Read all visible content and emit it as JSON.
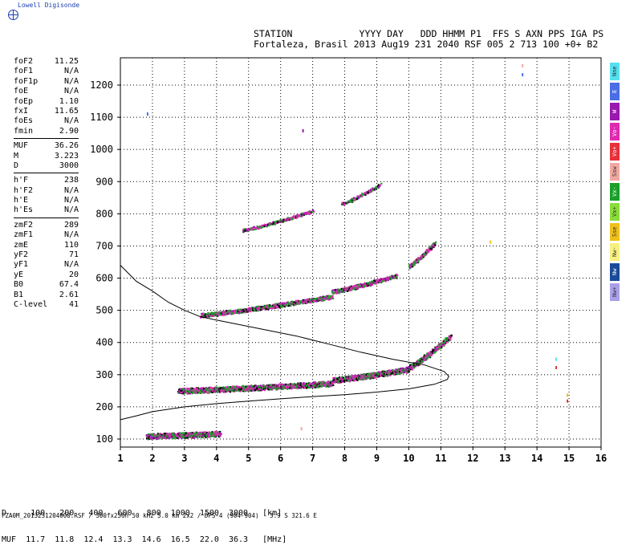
{
  "brand": "Lowell Digisonde",
  "header": {
    "line1": "STATION            YYYY DAY   DDD HHMM P1  FFS S AXN PPS IGA PS",
    "line2": "Fortaleza, Brasil 2013 Aug19 231 2040 RSF 005 2 713 100 +0+ B2"
  },
  "params": {
    "group1": [
      {
        "name": "foF2",
        "value": "11.25"
      },
      {
        "name": "foF1",
        "value": "N/A"
      },
      {
        "name": "foF1p",
        "value": "N/A"
      },
      {
        "name": "foE",
        "value": "N/A"
      },
      {
        "name": "foEp",
        "value": "1.10"
      },
      {
        "name": "fxI",
        "value": "11.65"
      },
      {
        "name": "foEs",
        "value": "N/A"
      },
      {
        "name": "fmin",
        "value": "2.90"
      }
    ],
    "group2": [
      {
        "name": "MUF",
        "value": "36.26"
      },
      {
        "name": "M",
        "value": "3.223"
      },
      {
        "name": "D",
        "value": "3000"
      }
    ],
    "group3": [
      {
        "name": "h'F",
        "value": "238"
      },
      {
        "name": "h'F2",
        "value": "N/A"
      },
      {
        "name": "h'E",
        "value": "N/A"
      },
      {
        "name": "h'Es",
        "value": "N/A"
      }
    ],
    "group4": [
      {
        "name": "zmF2",
        "value": "289"
      },
      {
        "name": "zmF1",
        "value": "N/A"
      },
      {
        "name": "zmE",
        "value": "110"
      },
      {
        "name": "yF2",
        "value": "71"
      },
      {
        "name": "yF1",
        "value": "N/A"
      },
      {
        "name": "yE",
        "value": "20"
      },
      {
        "name": "B0",
        "value": "67.4"
      },
      {
        "name": "B1",
        "value": "2.61"
      },
      {
        "name": "C-level",
        "value": "41"
      }
    ]
  },
  "legend": [
    {
      "label": "Nne",
      "color": "#55e0f0"
    },
    {
      "label": "E",
      "color": "#4a6ee6"
    },
    {
      "label": "W",
      "color": "#9a18b0"
    },
    {
      "label": "Vo-",
      "color": "#e02ab0"
    },
    {
      "label": "Vo+",
      "color": "#e8303a"
    },
    {
      "label": "Ssw",
      "color": "#f0a8a0"
    },
    {
      "label": "Vx-",
      "color": "#1aa02a"
    },
    {
      "label": "Vx+",
      "color": "#8adc3a"
    },
    {
      "label": "Sse",
      "color": "#f0c018"
    },
    {
      "label": "Nw-",
      "color": "#f8f080"
    },
    {
      "label": "Nw",
      "color": "#1a4a9a"
    },
    {
      "label": "Nw+",
      "color": "#a8a0e8"
    }
  ],
  "bottom": {
    "line1": "D     100   200   400   600   800  1000  1500  3000   [km]",
    "line2": "MUF  11.7  11.8  12.4  13.3  14.6  16.5  22.0  36.3   [MHz]"
  },
  "footer": "FZA0M_2013231204000.RSF / 300fx256h 50 kHz 5.0 km 2x2 / DPS-4 (904-904)   3.9 S 321.6 E",
  "chart_data": {
    "type": "scatter",
    "title": "",
    "xlabel": "",
    "ylabel": "",
    "xlim": [
      1,
      16
    ],
    "ylim": [
      80,
      1300
    ],
    "x_ticks": [
      1,
      2,
      3,
      4,
      5,
      6,
      7,
      8,
      9,
      10,
      11,
      12,
      13,
      14,
      15,
      16
    ],
    "y_ticks": [
      100,
      200,
      300,
      400,
      500,
      600,
      700,
      800,
      900,
      1000,
      1100,
      1200
    ],
    "grid": true,
    "profile_curve": {
      "x": [
        1.0,
        1.5,
        2.0,
        3.0,
        4.0,
        5.0,
        6.0,
        7.0,
        8.0,
        9.0,
        10.0,
        10.8,
        11.2,
        11.25,
        11.1,
        10.5,
        9.5,
        8.5,
        7.5,
        6.5,
        5.5,
        4.5,
        4.0,
        3.5,
        3.0,
        2.5,
        2.0,
        1.5,
        1.0
      ],
      "y": [
        160,
        172,
        185,
        200,
        210,
        218,
        225,
        232,
        238,
        246,
        256,
        270,
        285,
        295,
        310,
        330,
        348,
        370,
        395,
        420,
        440,
        460,
        470,
        480,
        500,
        525,
        560,
        590,
        640
      ]
    },
    "traces": [
      {
        "name": "E echoes",
        "x_from": 1.8,
        "x_to": 4.1,
        "h_from": 104,
        "h_to": 112,
        "width": 4
      },
      {
        "name": "F 1st hop",
        "x_from": 2.8,
        "x_to": 7.6,
        "h_from": 245,
        "h_to": 268,
        "width": 4
      },
      {
        "name": "F 1st hop upper",
        "x_from": 7.6,
        "x_to": 10.0,
        "h_from": 278,
        "h_to": 312,
        "width": 4
      },
      {
        "name": "F cusp",
        "x_from": 10.0,
        "x_to": 11.3,
        "h_from": 318,
        "h_to": 415,
        "width": 4
      },
      {
        "name": "F 2nd hop",
        "x_from": 3.5,
        "x_to": 7.6,
        "h_from": 482,
        "h_to": 540,
        "width": 3
      },
      {
        "name": "F 2nd hop upper",
        "x_from": 7.6,
        "x_to": 9.6,
        "h_from": 555,
        "h_to": 605,
        "width": 3
      },
      {
        "name": "F 2nd hop cusp",
        "x_from": 10.0,
        "x_to": 10.8,
        "h_from": 635,
        "h_to": 705,
        "width": 3
      },
      {
        "name": "F 3rd hop",
        "x_from": 4.8,
        "x_to": 7.0,
        "h_from": 748,
        "h_to": 808,
        "width": 2
      },
      {
        "name": "F 3rd hop upper",
        "x_from": 7.9,
        "x_to": 9.1,
        "h_from": 830,
        "h_to": 890,
        "width": 2
      }
    ],
    "spots": [
      {
        "x": 1.85,
        "y": 1110,
        "color": "#4a6ee6"
      },
      {
        "x": 6.7,
        "y": 1058,
        "color": "#9a18b0"
      },
      {
        "x": 13.55,
        "y": 1260,
        "color": "#f0a8a0"
      },
      {
        "x": 13.55,
        "y": 1232,
        "color": "#4a6ee6"
      },
      {
        "x": 14.6,
        "y": 348,
        "color": "#55e0f0"
      },
      {
        "x": 14.6,
        "y": 322,
        "color": "#e8303a"
      },
      {
        "x": 14.95,
        "y": 218,
        "color": "#e8303a"
      },
      {
        "x": 14.95,
        "y": 236,
        "color": "#f0c018"
      },
      {
        "x": 12.55,
        "y": 712,
        "color": "#f0c018"
      },
      {
        "x": 6.65,
        "y": 132,
        "color": "#f0a8a0"
      }
    ]
  }
}
